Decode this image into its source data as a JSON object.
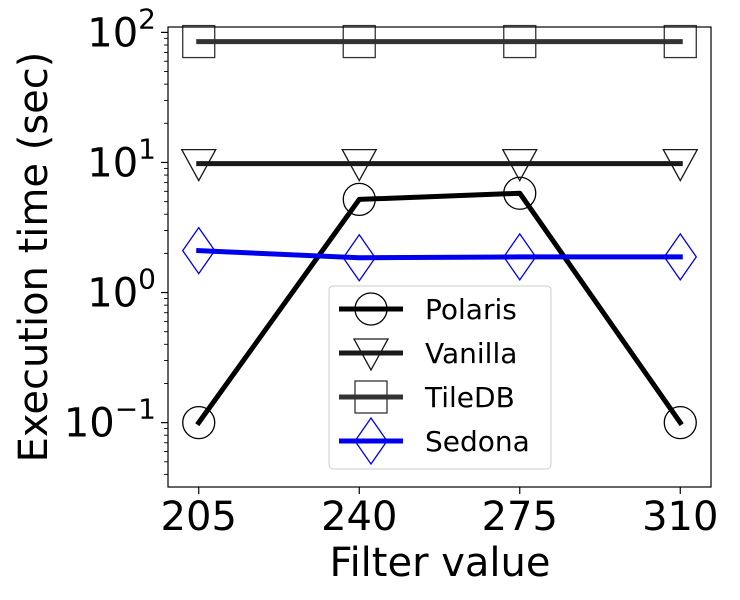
{
  "chart_data": {
    "type": "line",
    "xlabel": "Filter value",
    "ylabel": "Execution time (sec)",
    "y_scale": "log",
    "ylim": [
      0.032,
      110
    ],
    "x": [
      205,
      240,
      275,
      310
    ],
    "x_ticks": [
      "205",
      "240",
      "275",
      "310"
    ],
    "y_ticks": [
      {
        "value": 100,
        "base": "10",
        "exp": "2"
      },
      {
        "value": 10,
        "base": "10",
        "exp": "1"
      },
      {
        "value": 1,
        "base": "10",
        "exp": "0"
      },
      {
        "value": 0.1,
        "base": "10",
        "exp": "−1"
      }
    ],
    "grid": false,
    "legend_position": "lower-center",
    "series": [
      {
        "name": "Polaris",
        "values": [
          0.1,
          5.2,
          5.8,
          0.1
        ],
        "color": "#000000",
        "marker": "circle"
      },
      {
        "name": "Vanilla",
        "values": [
          9.8,
          9.8,
          9.8,
          9.8
        ],
        "color": "#1a1a1a",
        "marker": "triangle-down"
      },
      {
        "name": "TileDB",
        "values": [
          85,
          85,
          85,
          85
        ],
        "color": "#333333",
        "marker": "square"
      },
      {
        "name": "Sedona",
        "values": [
          2.1,
          1.85,
          1.88,
          1.88
        ],
        "color": "#0000ee",
        "marker": "diamond"
      }
    ]
  }
}
